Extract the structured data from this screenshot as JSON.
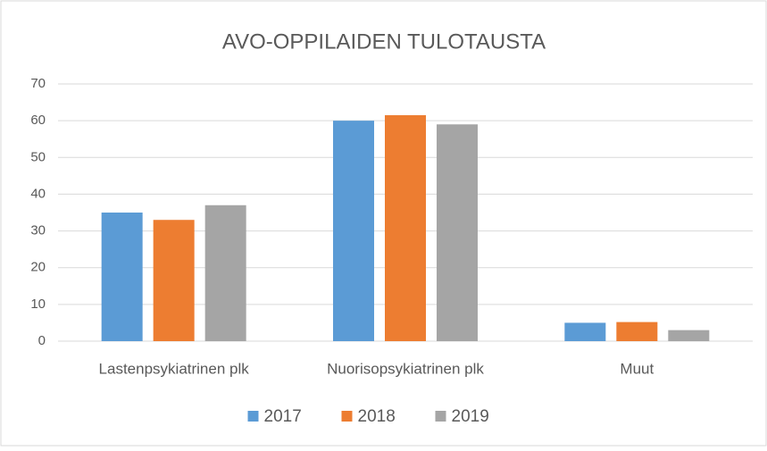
{
  "chart_data": {
    "type": "bar",
    "title": "AVO-OPPILAIDEN TULOTAUSTA",
    "categories": [
      "Lastenpsykiatrinen plk",
      "Nuorisopsykiatrinen plk",
      "Muut"
    ],
    "series": [
      {
        "name": "2017",
        "color": "#5b9bd5",
        "values": [
          35,
          60,
          5
        ]
      },
      {
        "name": "2018",
        "color": "#ed7d31",
        "values": [
          33,
          61.5,
          5.2
        ]
      },
      {
        "name": "2019",
        "color": "#a5a5a5",
        "values": [
          37,
          59,
          3
        ]
      }
    ],
    "ylim": [
      0,
      70
    ],
    "yticks": [
      0,
      10,
      20,
      30,
      40,
      50,
      60,
      70
    ],
    "grid": true,
    "legend": "bottom"
  }
}
